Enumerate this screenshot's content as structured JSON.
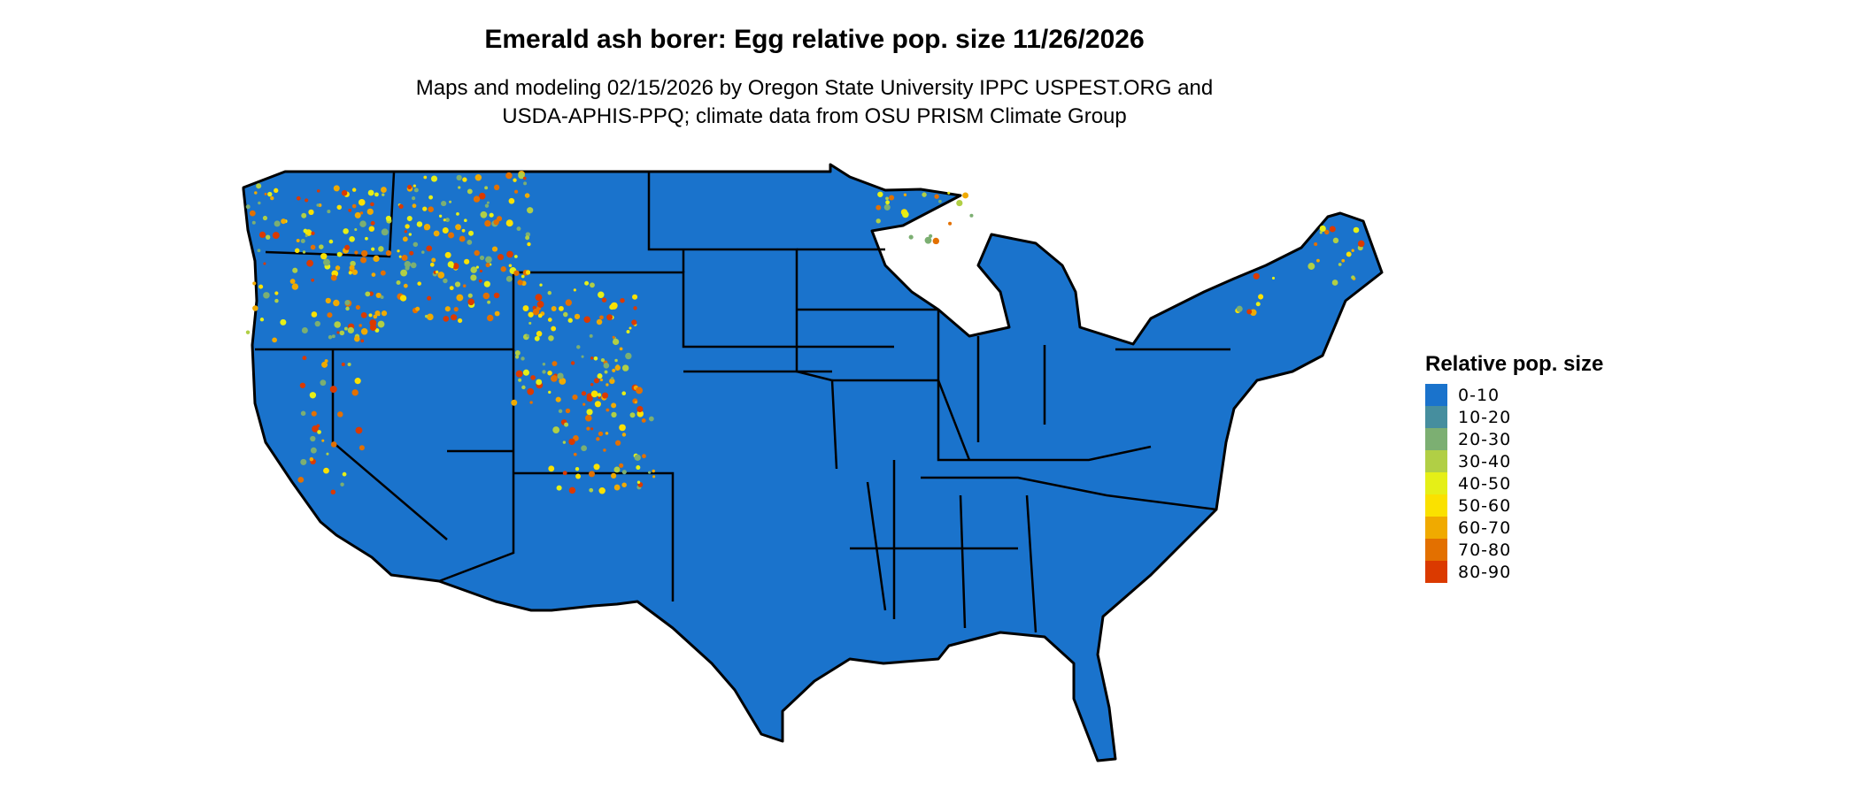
{
  "title": "Emerald ash borer: Egg relative pop. size 11/26/2026",
  "subtitle_line1": "Maps and modeling 02/15/2026 by Oregon State University IPPC USPEST.ORG and",
  "subtitle_line2": "USDA-APHIS-PPQ; climate data from OSU PRISM Climate Group",
  "map": {
    "region": "Contiguous United States",
    "base_color": "#1a73cc",
    "border_color": "#000000",
    "hotspot_regions": [
      "Pacific Northwest",
      "Northern Rockies",
      "Colorado Rockies",
      "Sierra Nevada",
      "Upper Michigan",
      "Northern New England",
      "Adirondacks"
    ]
  },
  "legend": {
    "title": "Relative pop. size",
    "items": [
      {
        "label": "0-10",
        "color": "#1a73cc"
      },
      {
        "label": "10-20",
        "color": "#468e9e"
      },
      {
        "label": "20-30",
        "color": "#7caf72"
      },
      {
        "label": "30-40",
        "color": "#b1cf45"
      },
      {
        "label": "40-50",
        "color": "#e5ef17"
      },
      {
        "label": "50-60",
        "color": "#fae100"
      },
      {
        "label": "60-70",
        "color": "#f0aa00"
      },
      {
        "label": "70-80",
        "color": "#e37000"
      },
      {
        "label": "80-90",
        "color": "#db3a00"
      }
    ]
  }
}
